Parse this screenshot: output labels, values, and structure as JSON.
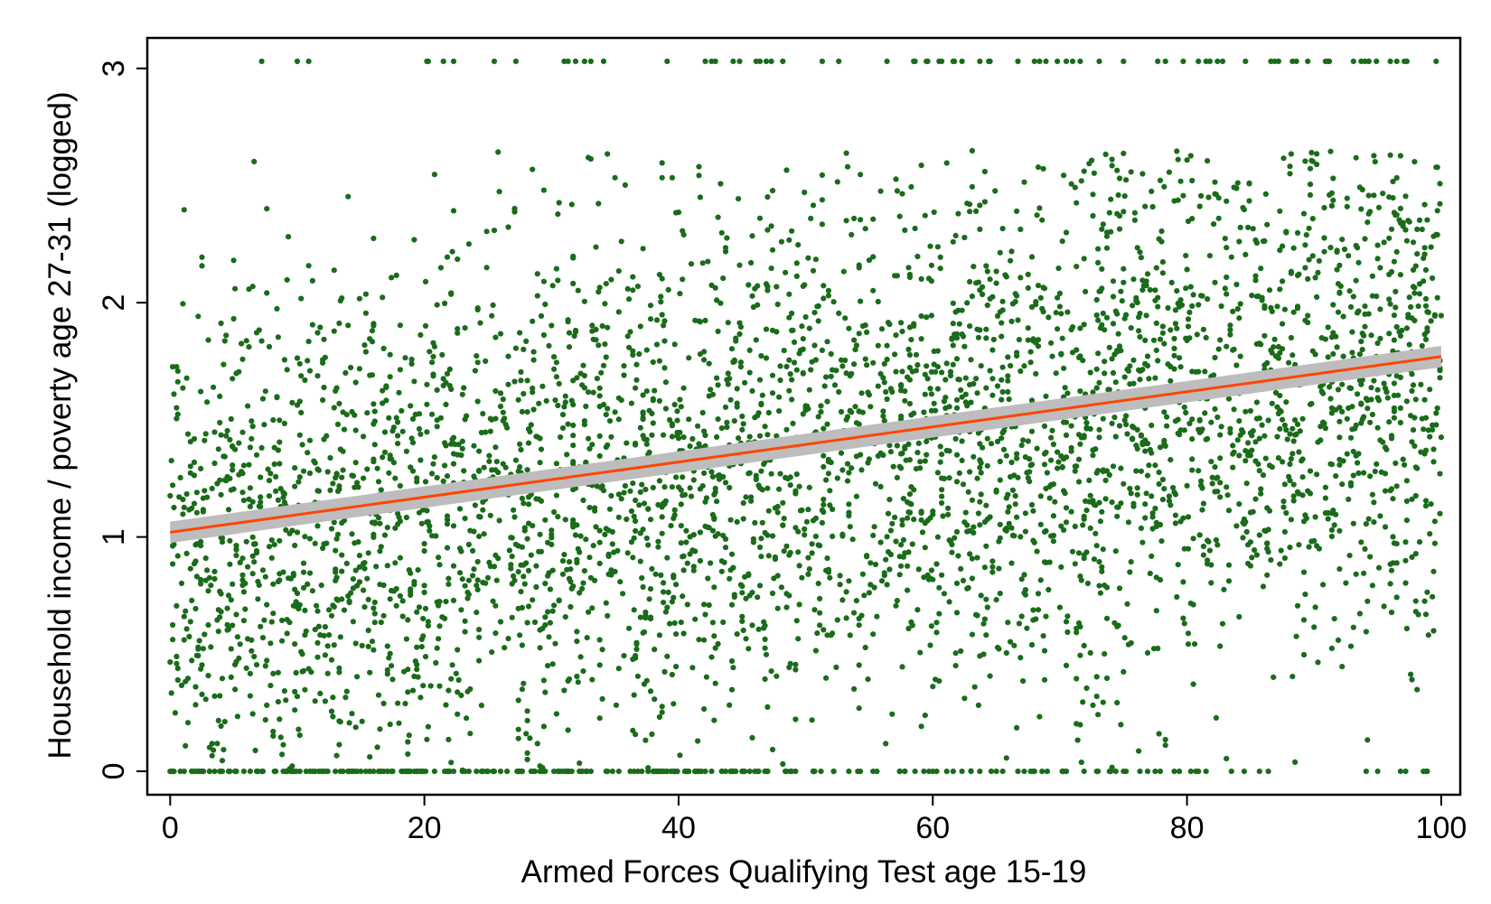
{
  "chart_data": {
    "type": "scatter",
    "title": "",
    "xlabel": "Armed Forces Qualifying Test age 15-19",
    "ylabel": "Household income / poverty age 27-31 (logged)",
    "xlim": [
      -1.8,
      101.5
    ],
    "ylim": [
      -0.1,
      3.13
    ],
    "x_ticks": [
      0,
      20,
      40,
      60,
      80,
      100
    ],
    "y_ticks": [
      0,
      1,
      2,
      3
    ],
    "grid": false,
    "legend": "none",
    "colors": {
      "points": "#1a6b1a",
      "fit_line": "#ff4500",
      "confidence_band": "#bdbdbd",
      "frame": "#000000"
    },
    "fit_line": {
      "type": "linear",
      "x": [
        0,
        100
      ],
      "y": [
        1.02,
        1.77
      ],
      "ci_halfwidth": 0.035
    },
    "series": [
      {
        "type": "scatter",
        "n_points_approx": 4500,
        "floor_value": 0,
        "ceiling_value": 3.03,
        "x_range": [
          0,
          100
        ],
        "notes_for_density": {
          "intercept": 0.95,
          "slope": 0.0075,
          "spread": 0.55
        }
      }
    ]
  }
}
